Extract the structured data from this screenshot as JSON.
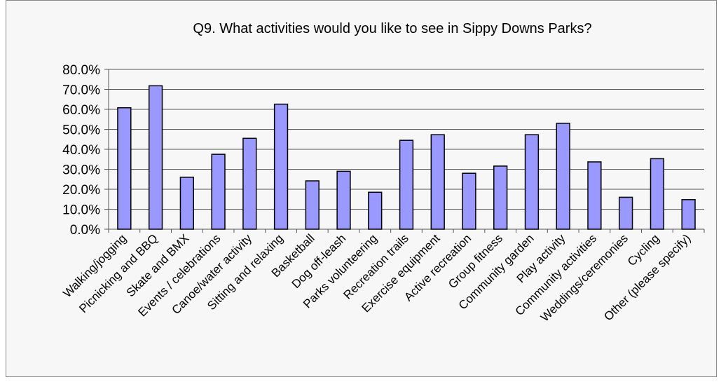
{
  "chart_data": {
    "type": "bar",
    "title": "Q9. What activities would you like to see in Sippy Downs Parks?",
    "xlabel": "",
    "ylabel": "",
    "ylim": [
      0,
      80
    ],
    "y_ticks": [
      "0.0%",
      "10.0%",
      "20.0%",
      "30.0%",
      "40.0%",
      "50.0%",
      "60.0%",
      "70.0%",
      "80.0%"
    ],
    "y_tick_values": [
      0,
      10,
      20,
      30,
      40,
      50,
      60,
      70,
      80
    ],
    "grid": true,
    "legend": "none",
    "bar_color": "#9999ff",
    "bar_border_color": "#000000",
    "categories": [
      "Walking/jogging",
      "Picnicking and BBQ",
      "Skate and BMX",
      "Events / celebrations",
      "Canoe/water activity",
      "Sitting and relaxing",
      "Basketball",
      "Dog off-leash",
      "Parks volunteering",
      "Recreation trails",
      "Exercise equipment",
      "Active recreation",
      "Group fitness",
      "Community garden",
      "Play activity",
      "Community activities",
      "Weddings/ceremonies",
      "Cycling",
      "Other (please specify)"
    ],
    "values": [
      60.8,
      71.8,
      26.0,
      37.5,
      45.5,
      62.6,
      24.2,
      29.0,
      18.5,
      44.5,
      47.3,
      28.0,
      31.6,
      47.3,
      53.0,
      33.7,
      16.0,
      35.3,
      14.8
    ]
  }
}
